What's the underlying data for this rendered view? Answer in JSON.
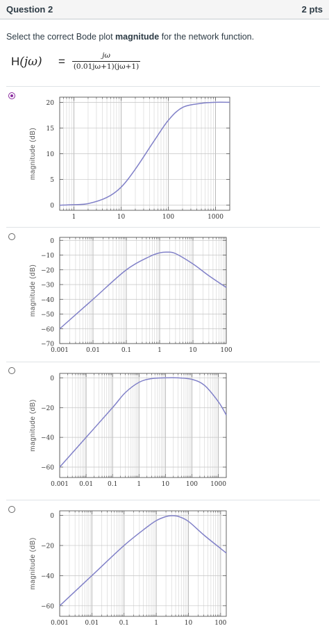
{
  "question": {
    "title": "Question 2",
    "points": "2 pts"
  },
  "prompt": {
    "before": "Select the correct Bode plot ",
    "bold": "magnitude",
    "after": " for the network function."
  },
  "formula": {
    "lhs_h": "H",
    "lhs_arg": "(jω)",
    "equals": "=",
    "numerator": "jω",
    "denominator": "(0.01jω+1)(jω+1)"
  },
  "options": [
    {
      "selected": true
    },
    {
      "selected": false
    },
    {
      "selected": false
    },
    {
      "selected": false
    }
  ],
  "chart_data": [
    {
      "type": "line",
      "ylabel": "magnitude (dB)",
      "x_scale": "log",
      "xlim": [
        0.5,
        2000
      ],
      "ylim": [
        -1,
        21
      ],
      "xticks": [
        1,
        10,
        100,
        1000
      ],
      "xtick_labels": [
        "1",
        "10",
        "100",
        "1000"
      ],
      "yticks": [
        0,
        5,
        10,
        15,
        20
      ],
      "ytick_labels": [
        "0",
        "5",
        "10",
        "15",
        "20"
      ],
      "color": "#8080c8",
      "x": [
        0.5,
        1,
        2,
        5,
        10,
        20,
        50,
        100,
        200,
        500,
        1000,
        2000
      ],
      "y": [
        0,
        0.1,
        0.3,
        1.5,
        3.5,
        7,
        12.5,
        16.5,
        19,
        19.8,
        20,
        20
      ]
    },
    {
      "type": "line",
      "ylabel": "magnitude (dB)",
      "x_scale": "log",
      "xlim": [
        0.001,
        100
      ],
      "ylim": [
        -70,
        2
      ],
      "xticks": [
        0.001,
        0.01,
        0.1,
        1,
        10,
        100
      ],
      "xtick_labels": [
        "0.001",
        "0.01",
        "0.1",
        "1",
        "10",
        "100"
      ],
      "yticks": [
        0,
        -10,
        -20,
        -30,
        -40,
        -50,
        -60,
        -70
      ],
      "ytick_labels": [
        "0",
        "−10",
        "−20",
        "−30",
        "−40",
        "−50",
        "−60",
        "−70"
      ],
      "color": "#8080c8",
      "x": [
        0.001,
        0.01,
        0.1,
        0.5,
        1,
        1.7,
        3,
        10,
        30,
        100
      ],
      "y": [
        -60,
        -40,
        -20,
        -11,
        -8.5,
        -8,
        -9,
        -16,
        -24,
        -32
      ]
    },
    {
      "type": "line",
      "ylabel": "magnitude (dB)",
      "x_scale": "log",
      "xlim": [
        0.001,
        2000
      ],
      "ylim": [
        -67,
        3
      ],
      "xticks": [
        0.001,
        0.01,
        0.1,
        1,
        10,
        100,
        1000
      ],
      "xtick_labels": [
        "0.001",
        "0.01",
        "0.1",
        "1",
        "10",
        "100",
        "1000"
      ],
      "yticks": [
        0,
        -20,
        -40,
        -60
      ],
      "ytick_labels": [
        "0",
        "−20",
        "−40",
        "−60"
      ],
      "color": "#8080c8",
      "x": [
        0.001,
        0.01,
        0.1,
        0.3,
        1,
        3,
        10,
        30,
        100,
        300,
        1000,
        2000
      ],
      "y": [
        -60,
        -40,
        -20,
        -10,
        -3,
        -0.5,
        0,
        0,
        -1,
        -5,
        -16,
        -25
      ]
    },
    {
      "type": "line",
      "ylabel": "magnitude (dB)",
      "x_scale": "log",
      "xlim": [
        0.001,
        150
      ],
      "ylim": [
        -67,
        3
      ],
      "xticks": [
        0.001,
        0.01,
        0.1,
        1,
        10,
        100
      ],
      "xtick_labels": [
        "0.001",
        "0.01",
        "0.1",
        "1",
        "10",
        "100"
      ],
      "yticks": [
        0,
        -20,
        -40,
        -60
      ],
      "ytick_labels": [
        "0",
        "−20",
        "−40",
        "−60"
      ],
      "color": "#8080c8",
      "x": [
        0.001,
        0.01,
        0.1,
        0.5,
        1,
        2,
        3,
        5,
        10,
        30,
        100,
        150
      ],
      "y": [
        -60,
        -40,
        -20,
        -8,
        -3.5,
        -0.8,
        -0.2,
        -0.8,
        -4,
        -13,
        -22,
        -25
      ]
    }
  ]
}
